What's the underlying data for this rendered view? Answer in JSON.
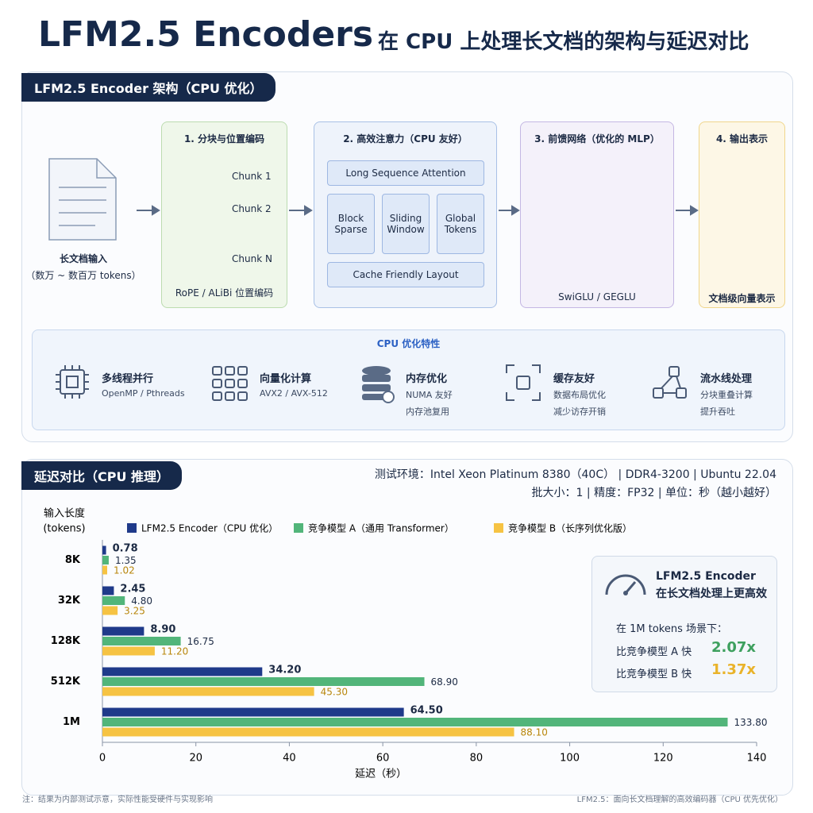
{
  "header": {
    "title": "LFM2.5 Encoders",
    "subtitle": "在 CPU 上处理长文档的架构与延迟对比"
  },
  "architecture": {
    "title": "LFM2.5 Encoder 架构（CPU 优化）",
    "input": {
      "label": "长文档输入",
      "sublabel": "（数万 ~ 数百万 tokens）"
    },
    "stages": [
      {
        "title": "1. 分块与位置编码",
        "items": [
          "Chunk 1",
          "Chunk 2",
          "Chunk N"
        ],
        "footer": "RoPE / ALiBi 位置编码"
      },
      {
        "title": "2. 高效注意力（CPU 友好）",
        "items": [
          "Long Sequence Attention",
          "Block Sparse",
          "Sliding Window",
          "Global Tokens",
          "Cache Friendly Layout"
        ]
      },
      {
        "title": "3. 前馈网络（优化的 MLP）",
        "footer": "SwiGLU / GEGLU"
      },
      {
        "title": "4. 输出表示",
        "footer": "文档级向量表示"
      }
    ],
    "features_title": "CPU 优化特性",
    "features": [
      {
        "title": "多线程并行",
        "lines": [
          "OpenMP / Pthreads"
        ]
      },
      {
        "title": "向量化计算",
        "lines": [
          "AVX2 / AVX-512"
        ]
      },
      {
        "title": "内存优化",
        "lines": [
          "NUMA 友好",
          "内存池复用"
        ]
      },
      {
        "title": "缓存友好",
        "lines": [
          "数据布局优化",
          "减少访存开销"
        ]
      },
      {
        "title": "流水线处理",
        "lines": [
          "分块重叠计算",
          "提升吞吐"
        ]
      }
    ]
  },
  "latency": {
    "title": "延迟对比（CPU 推理）",
    "env": [
      "测试环境：Intel Xeon Platinum 8380（40C） | DDR4-3200 | Ubuntu 22.04",
      "批大小：1 | 精度：FP32 | 单位：秒（越小越好）"
    ]
  },
  "chart_data": {
    "type": "hbar",
    "y_title": [
      "输入长度",
      "(tokens)"
    ],
    "x_title": "延迟（秒）",
    "categories": [
      "8K",
      "32K",
      "128K",
      "512K",
      "1M"
    ],
    "series": [
      {
        "name": "LFM2.5 Encoder（CPU 优化）",
        "color": "#1f3a8a",
        "values": [
          0.78,
          2.45,
          8.9,
          34.2,
          64.5
        ],
        "value_labels": [
          "0.78",
          "2.45",
          "8.90",
          "34.20",
          "64.50"
        ]
      },
      {
        "name": "竞争模型 A（通用 Transformer）",
        "color": "#52b57a",
        "values": [
          1.35,
          4.8,
          16.75,
          68.9,
          133.8
        ],
        "value_labels": [
          "1.35",
          "4.80",
          "16.75",
          "68.90",
          "133.80"
        ]
      },
      {
        "name": "竞争模型 B（长序列优化版）",
        "color": "#f6c343",
        "values": [
          1.02,
          3.25,
          11.2,
          45.3,
          88.1
        ],
        "value_labels": [
          "1.02",
          "3.25",
          "11.20",
          "45.30",
          "88.10"
        ]
      }
    ],
    "xlim": [
      0,
      140
    ],
    "xticks": [
      0,
      20,
      40,
      60,
      80,
      100,
      120,
      140
    ],
    "grid": false
  },
  "summary": {
    "title": "LFM2.5 Encoder 在长文档处理上更高效",
    "scenario": "在 1M tokens 场景下：",
    "rows": [
      {
        "label": "比竞争模型 A 快",
        "value": "2.07x"
      },
      {
        "label": "比竞争模型 B 快",
        "value": "1.37x"
      }
    ]
  },
  "footer": {
    "left": "注：结果为内部测试示意，实际性能受硬件与实现影响",
    "right": "LFM2.5：面向长文档理解的高效编码器（CPU 优先优化）"
  }
}
